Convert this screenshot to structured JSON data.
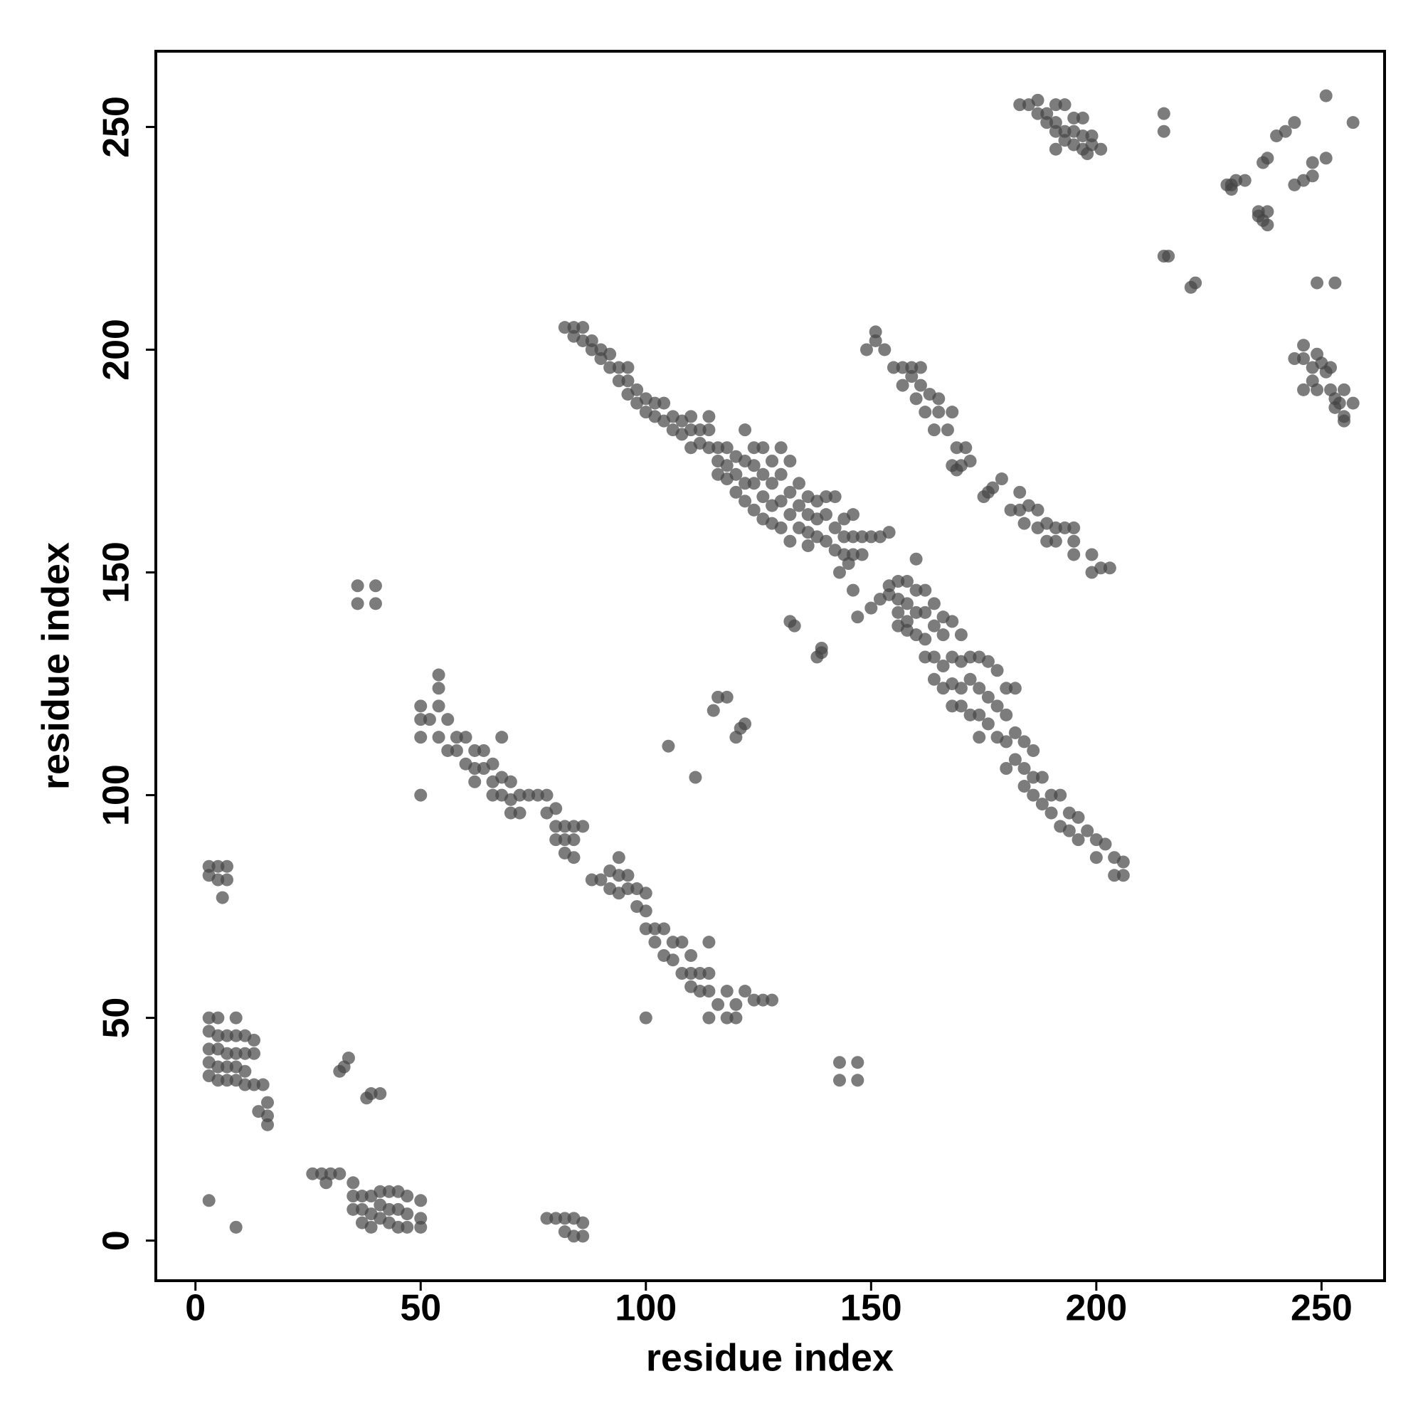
{
  "chart_data": {
    "type": "scatter",
    "xlabel": "residue index",
    "ylabel": "residue index",
    "xlim": [
      -8.8,
      264
    ],
    "ylim": [
      -9,
      267
    ],
    "xticks": [
      0,
      50,
      100,
      150,
      200,
      250
    ],
    "yticks": [
      0,
      50,
      100,
      150,
      200,
      250
    ],
    "color": "#444444",
    "alpha": 0.7,
    "x": [
      183,
      185,
      187,
      187,
      189,
      189,
      191,
      191,
      193,
      191,
      193,
      195,
      195,
      197,
      195,
      197,
      199,
      199,
      201,
      197,
      191,
      193,
      198,
      215,
      215,
      229,
      230,
      231,
      233,
      236,
      237,
      238,
      238,
      237,
      238,
      240,
      242,
      244,
      244,
      246,
      248,
      248,
      251,
      251,
      257,
      230,
      236,
      215,
      216,
      222,
      221,
      249,
      253,
      244,
      246,
      246,
      248,
      249,
      250,
      248,
      251,
      252,
      246,
      249,
      252,
      253,
      254,
      255,
      257,
      255,
      255,
      253,
      149,
      151,
      151,
      153,
      155,
      157,
      157,
      159,
      159,
      161,
      161,
      160,
      162,
      163,
      165,
      165,
      164,
      167,
      168,
      169,
      171,
      170,
      169,
      172,
      168,
      175,
      176,
      177,
      179,
      181,
      183,
      183,
      185,
      184,
      187,
      187,
      189,
      189,
      191,
      193,
      191,
      195,
      195,
      195,
      199,
      199,
      201,
      203,
      82,
      84,
      84,
      86,
      86,
      88,
      88,
      90,
      90,
      92,
      92,
      94,
      94,
      96,
      96,
      96,
      98,
      98,
      100,
      100,
      102,
      102,
      104,
      104,
      106,
      106,
      108,
      108,
      110,
      110,
      110,
      112,
      112,
      114,
      114,
      114,
      116,
      116,
      116,
      118,
      118,
      118,
      120,
      120,
      120,
      122,
      122,
      122,
      122,
      124,
      124,
      124,
      124,
      126,
      126,
      126,
      126,
      128,
      128,
      128,
      128,
      130,
      130,
      130,
      130,
      132,
      132,
      132,
      132,
      134,
      134,
      134,
      136,
      136,
      136,
      138,
      138,
      138,
      140,
      140,
      140,
      142,
      142,
      142,
      144,
      144,
      144,
      146,
      146,
      146,
      148,
      148,
      150,
      152,
      154,
      143,
      145,
      146,
      147,
      136,
      150,
      152,
      154,
      154,
      156,
      156,
      156,
      158,
      158,
      158,
      160,
      160,
      160,
      160,
      162,
      162,
      162,
      162,
      164,
      164,
      164,
      164,
      166,
      166,
      166,
      166,
      168,
      168,
      168,
      168,
      170,
      170,
      170,
      170,
      172,
      172,
      172,
      174,
      174,
      174,
      174,
      176,
      176,
      176,
      178,
      178,
      178,
      180,
      180,
      180,
      180,
      182,
      182,
      182,
      184,
      184,
      184,
      186,
      186,
      186,
      188,
      188,
      190,
      190,
      192,
      192,
      194,
      194,
      196,
      196,
      198,
      200,
      200,
      202,
      204,
      204,
      206,
      206,
      158,
      156,
      132,
      133,
      139,
      138,
      139,
      116,
      118,
      115,
      122,
      121,
      120,
      105,
      111,
      50,
      50,
      52,
      50,
      54,
      54,
      54,
      54,
      56,
      56,
      58,
      58,
      60,
      60,
      62,
      62,
      62,
      64,
      64,
      66,
      66,
      66,
      68,
      68,
      68,
      70,
      70,
      70,
      72,
      72,
      74,
      76,
      78,
      78,
      80,
      80,
      80,
      82,
      82,
      84,
      84,
      86,
      84,
      82,
      88,
      90,
      92,
      92,
      94,
      94,
      94,
      96,
      96,
      98,
      98,
      100,
      100,
      100,
      102,
      102,
      104,
      104,
      106,
      106,
      108,
      108,
      110,
      110,
      110,
      112,
      112,
      114,
      114,
      114,
      116,
      118,
      118,
      120,
      120,
      122,
      124,
      126,
      128,
      114,
      100,
      50,
      3,
      5,
      7,
      3,
      5,
      7,
      6,
      3,
      3,
      5,
      5,
      3,
      5,
      7,
      7,
      3,
      5,
      7,
      9,
      3,
      5,
      7,
      9,
      9,
      9,
      9,
      11,
      11,
      11,
      13,
      13,
      11,
      13,
      15,
      14,
      16,
      16,
      16,
      3,
      9,
      32,
      33,
      34,
      38,
      39,
      41,
      36,
      36,
      40,
      40,
      143,
      143,
      147,
      147,
      26,
      28,
      30,
      32,
      29,
      35,
      35,
      35,
      37,
      37,
      37,
      39,
      39,
      39,
      41,
      41,
      41,
      43,
      43,
      43,
      45,
      45,
      45,
      47,
      47,
      47,
      50,
      50,
      50,
      78,
      80,
      82,
      84,
      82,
      84,
      86,
      86
    ],
    "y": [
      255,
      255,
      256,
      253,
      253,
      251,
      255,
      251,
      255,
      249,
      249,
      252,
      249,
      252,
      246,
      248,
      248,
      246,
      245,
      245,
      245,
      247,
      244,
      253,
      249,
      237,
      236,
      238,
      238,
      230,
      229,
      231,
      228,
      242,
      243,
      248,
      249,
      251,
      237,
      238,
      239,
      242,
      243,
      257,
      251,
      237,
      231,
      221,
      221,
      215,
      214,
      215,
      215,
      198,
      198,
      201,
      196,
      199,
      197,
      193,
      195,
      196,
      191,
      191,
      191,
      189,
      188,
      191,
      188,
      185,
      184,
      187,
      200,
      202,
      204,
      200,
      196,
      196,
      192,
      194,
      196,
      196,
      192,
      189,
      186,
      190,
      189,
      186,
      182,
      182,
      186,
      178,
      178,
      174,
      173,
      175,
      174,
      167,
      168,
      169,
      171,
      164,
      168,
      164,
      165,
      161,
      160,
      164,
      161,
      157,
      160,
      160,
      157,
      157,
      154,
      160,
      154,
      150,
      151,
      151,
      205,
      203,
      205,
      205,
      202,
      202,
      200,
      200,
      198,
      196,
      199,
      196,
      193,
      196,
      193,
      190,
      191,
      188,
      189,
      186,
      188,
      185,
      188,
      184,
      185,
      182,
      181,
      184,
      185,
      182,
      178,
      182,
      179,
      182,
      185,
      178,
      178,
      175,
      172,
      178,
      174,
      171,
      176,
      172,
      168,
      182,
      175,
      170,
      166,
      178,
      174,
      170,
      164,
      178,
      172,
      167,
      162,
      175,
      170,
      165,
      161,
      178,
      172,
      166,
      160,
      175,
      168,
      163,
      157,
      170,
      165,
      160,
      167,
      163,
      159,
      166,
      162,
      158,
      167,
      163,
      157,
      167,
      160,
      155,
      162,
      158,
      154,
      163,
      158,
      154,
      158,
      154,
      158,
      158,
      159,
      150,
      152,
      146,
      140,
      156,
      142,
      144,
      147,
      145,
      148,
      144,
      141,
      148,
      143,
      139,
      153,
      146,
      141,
      136,
      146,
      141,
      135,
      131,
      143,
      138,
      131,
      126,
      140,
      136,
      129,
      124,
      139,
      131,
      125,
      120,
      136,
      130,
      124,
      120,
      131,
      126,
      118,
      131,
      124,
      118,
      113,
      130,
      122,
      116,
      128,
      120,
      113,
      124,
      118,
      112,
      106,
      124,
      114,
      108,
      112,
      106,
      102,
      110,
      104,
      100,
      104,
      98,
      100,
      96,
      100,
      93,
      96,
      92,
      95,
      90,
      92,
      90,
      86,
      89,
      86,
      82,
      85,
      82,
      137,
      138,
      139,
      138,
      132,
      131,
      133,
      122,
      122,
      119,
      116,
      115,
      113,
      111,
      104,
      120,
      117,
      117,
      113,
      127,
      124,
      120,
      113,
      117,
      110,
      113,
      110,
      113,
      107,
      110,
      106,
      103,
      110,
      106,
      107,
      103,
      100,
      113,
      104,
      100,
      103,
      99,
      96,
      100,
      96,
      100,
      100,
      100,
      96,
      97,
      93,
      90,
      93,
      90,
      90,
      93,
      93,
      86,
      87,
      81,
      81,
      83,
      79,
      86,
      82,
      78,
      82,
      79,
      79,
      75,
      78,
      74,
      70,
      70,
      67,
      70,
      64,
      67,
      63,
      67,
      60,
      64,
      60,
      57,
      60,
      56,
      60,
      56,
      67,
      53,
      56,
      50,
      53,
      50,
      56,
      54,
      54,
      54,
      50,
      50,
      100,
      84,
      84,
      84,
      82,
      81,
      81,
      77,
      47,
      50,
      50,
      46,
      43,
      43,
      46,
      42,
      40,
      39,
      39,
      39,
      37,
      36,
      36,
      36,
      42,
      46,
      50,
      46,
      42,
      38,
      45,
      42,
      35,
      35,
      35,
      29,
      31,
      28,
      26,
      9,
      3,
      38,
      39,
      41,
      32,
      33,
      33,
      147,
      143,
      147,
      143,
      40,
      36,
      40,
      36,
      15,
      15,
      15,
      15,
      13,
      13,
      10,
      7,
      10,
      7,
      4,
      10,
      6,
      3,
      11,
      8,
      5,
      11,
      7,
      4,
      11,
      7,
      3,
      10,
      6,
      3,
      9,
      5,
      3,
      5,
      5,
      5,
      5,
      2,
      1,
      1,
      4
    ]
  }
}
